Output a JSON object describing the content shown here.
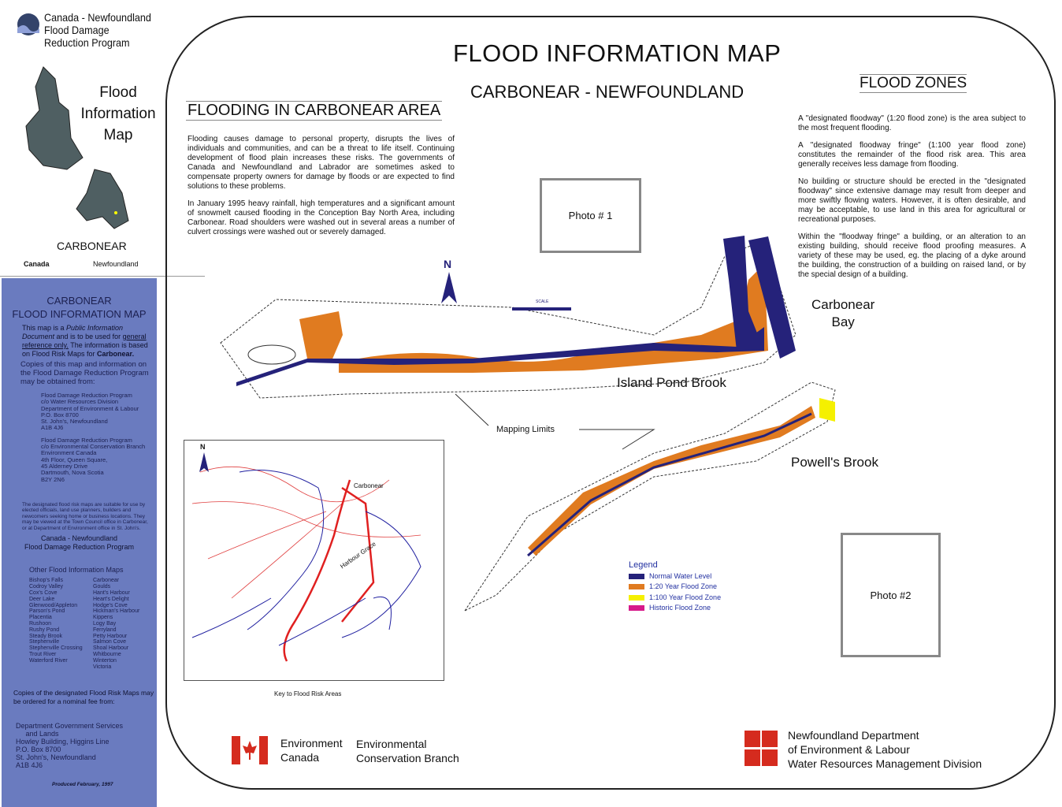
{
  "program_logo": {
    "text": "Canada - Newfoundland\nFlood Damage\nReduction Program"
  },
  "side_title": [
    "Flood",
    "Information",
    "Map"
  ],
  "location_label": "CARBONEAR",
  "gov_wordmarks": {
    "canada": "Canada",
    "newfoundland": "Newfoundland"
  },
  "panel": {
    "title1": "CARBONEAR",
    "title2": "FLOOD INFORMATION MAP",
    "intro1": "This map is a ",
    "intro1_italic": "Public Information Document",
    "intro2": "and is to be used for ",
    "intro2_underline": "general reference only.",
    "intro3": "The information is based on Flood Risk Maps for ",
    "intro3_bold": "Carbonear.",
    "copies": "Copies of this map and information on the Flood Damage Reduction Program may be obtained from:",
    "address1": [
      "Flood Damage Reduction Program",
      "c/o  Water Resources Division",
      "Department of Environment & Labour",
      "P.O. Box 8700",
      "St. John's, Newfoundland",
      "A1B  4J6"
    ],
    "address2": [
      "Flood Damage Reduction Program",
      "c/o Environmental Conservation Branch",
      "Environment Canada",
      "4th Floor, Queen Square,",
      "45 Alderney Drive",
      "Dartmouth, Nova Scotia",
      "B2Y  2N6"
    ],
    "usage": "The designated flood risk maps are suitable for use by elected officials, land use planners, builders and newcomers seeking home or business locations. They may be viewed at the Town Council office in Carbonear, or at Department of Environment office in St. John's.",
    "program": "Canada - Newfoundland\nFlood Damage Reduction Program",
    "other_title": "Other Flood Information Maps",
    "other_col1": [
      "Bishop's Falls",
      "Codroy Valley",
      "Cox's Cove",
      "Deer Lake",
      "Glenwood/Appleton",
      "Parson's Pond",
      "Placentia",
      "Rushoon",
      "Rushy Pond",
      "Steady Brook",
      "Stephenville",
      "Stephenville Crossing",
      "Trout River",
      "Waterford River"
    ],
    "other_col2": [
      "Carbonear",
      "Goulds",
      "Hant's Harbour",
      "Heart's Delight",
      "Hodge's Cove",
      "Hickman's Harbour",
      "Kippens",
      "Logy Bay",
      "Ferryland",
      "Petty Harbour",
      "Salmon Cove",
      "Shoal Harbour",
      "Whitbourne",
      "Winterton",
      "Victoria"
    ],
    "order": "Copies of the designated Flood Risk Maps may be ordered for a nominal fee from:",
    "address3": [
      "Department Government Services",
      "     and Lands",
      "Howley Building, Higgins Line",
      "P.O. Box 8700",
      "St. John's, Newfoundland",
      "A1B 4J6"
    ],
    "produced": "Produced February, 1997"
  },
  "title": "FLOOD INFORMATION MAP",
  "subtitle": "CARBONEAR  -  NEWFOUNDLAND",
  "flooding": {
    "heading": "FLOODING  IN CARBONEAR AREA",
    "p1": "Flooding causes damage to personal property, disrupts the lives of individuals and communities, and can be a threat to life itself. Continuing development of flood plain increases these risks. The governments of Canada and Newfoundland and Labrador are sometimes asked to compensate property owners for damage by floods or are expected to find solutions to these problems.",
    "p2": "In January 1995 heavy rainfall, high temperatures and a significant amount of snowmelt caused flooding in the Conception Bay North Area, including Carbonear. Road shoulders were washed out in several areas a number of culvert crossings were washed out or severely damaged."
  },
  "zones": {
    "heading": "FLOOD ZONES",
    "p1": "A \"designated floodway\" (1:20 flood zone) is the area subject to the most frequent flooding.",
    "p2": "A \"designated floodway fringe\" (1:100 year flood zone) constitutes the remainder of the flood risk area. This area generally receives less damage from flooding.",
    "p3": "No building or structure should be erected in the \"designated floodway\" since extensive damage may result from deeper and more swiftly flowing waters. However, it is often desirable, and may be acceptable, to use land in this area for agricultural or recreational purposes.",
    "p4": "Within the \"floodway fringe\" a building, or an alteration to an existing building, should receive flood proofing measures. A variety of these may be used, eg. the placing of a dyke around the building, the construction of a building on raised land, or by the special design of a building."
  },
  "photo1": "Photo # 1",
  "photo2": "Photo #2",
  "map_labels": {
    "north": "N",
    "bay": "Carbonear\nBay",
    "island_pond": "Island Pond Brook",
    "powells": "Powell's Brook",
    "limits": "Mapping Limits",
    "scale": "SCALE",
    "key_carbonear": "Carbonear",
    "key_harbour": "Harbour Grace",
    "key_caption": "Key to Flood Risk Areas"
  },
  "legend": {
    "title": "Legend",
    "items": [
      {
        "label": "Normal Water Level",
        "color": "#25227a"
      },
      {
        "label": "1:20 Year Flood Zone",
        "color": "#e07b20"
      },
      {
        "label": "1:100 Year Flood Zone",
        "color": "#f5f000"
      },
      {
        "label": "Historic Flood Zone",
        "color": "#d6198a"
      }
    ]
  },
  "footer": {
    "env_canada": "Environment\nCanada",
    "ecb": "Environmental\nConservation Branch",
    "nl_dept": "Newfoundland Department\nof Environment & Labour\nWater Resources Management Division"
  },
  "colors": {
    "panel": "#6a7bbf",
    "water": "#25227a",
    "flood20": "#e07b20"
  }
}
